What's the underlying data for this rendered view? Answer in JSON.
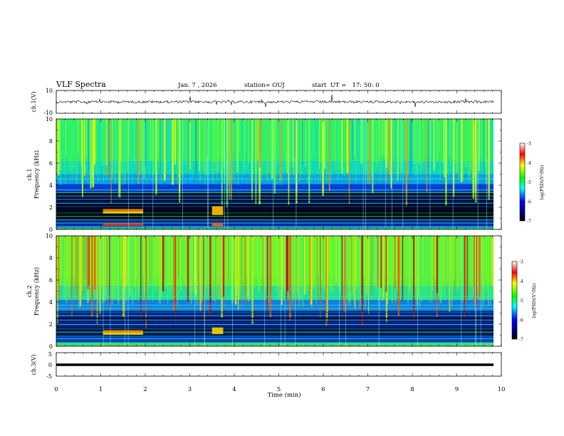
{
  "header": {
    "title": "VLF Spectra",
    "date": "Jan. 7 , 2026",
    "station": "station= OUJ",
    "start": "start  UT =   17: 50: 0"
  },
  "chart_data": [
    {
      "type": "line",
      "name": "ch1-waveform",
      "ylabel": "ch.1(V)",
      "ylim": [
        -10,
        10
      ],
      "yticks": [
        "10",
        "-10"
      ],
      "xlim": [
        0,
        10
      ]
    },
    {
      "type": "heatmap",
      "name": "ch1-spectrogram",
      "ylabel": "ch.1",
      "ylabel2": "Frequency (kHz)",
      "ylim": [
        0,
        10
      ],
      "yticks": [
        "0",
        "2",
        "4",
        "6",
        "8",
        "10"
      ],
      "xlim": [
        0,
        10
      ],
      "colorbar": {
        "label": "log(PSD)(V²/Hz)",
        "range": [
          -7,
          -3
        ],
        "ticks": [
          "-3",
          "-4",
          "-5",
          "-6",
          "-7"
        ]
      }
    },
    {
      "type": "heatmap",
      "name": "ch2-spectrogram",
      "ylabel": "ch.2",
      "ylabel2": "Frequency (kHz)",
      "ylim": [
        0,
        10
      ],
      "yticks": [
        "0",
        "2",
        "4",
        "6",
        "8",
        "10"
      ],
      "xlim": [
        0,
        10
      ],
      "colorbar": {
        "label": "log(PSD)(V²/Hz)",
        "range": [
          -7,
          -3
        ],
        "ticks": [
          "-3",
          "-4",
          "-5",
          "-6",
          "-7"
        ]
      }
    },
    {
      "type": "line",
      "name": "ch3-waveform",
      "ylabel": "ch.3(V)",
      "ylim": [
        -5,
        5
      ],
      "yticks": [
        "5",
        "0",
        "-5"
      ],
      "xlim": [
        0,
        10
      ]
    }
  ],
  "xaxis": {
    "label": "Time (min)",
    "ticks": [
      "0",
      "1",
      "2",
      "3",
      "4",
      "5",
      "6",
      "7",
      "8",
      "9",
      "10"
    ]
  },
  "colors": {
    "black": "#000000",
    "background": "#ffffff"
  }
}
